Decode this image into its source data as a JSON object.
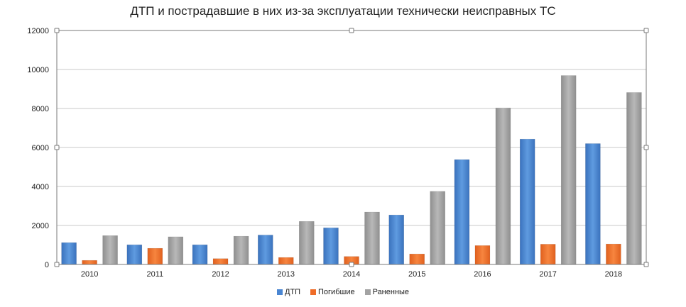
{
  "chart_data": {
    "type": "bar",
    "title": "ДТП и пострадавшие в них из-за эксплуатации технически неисправных ТС",
    "xlabel": "",
    "ylabel": "",
    "categories": [
      "2010",
      "2011",
      "2012",
      "2013",
      "2014",
      "2015",
      "2016",
      "2017",
      "2018"
    ],
    "series": [
      {
        "name": "ДТП",
        "color": "#4a86d2",
        "values": [
          1120,
          1010,
          1010,
          1510,
          1880,
          2540,
          5380,
          6430,
          6200
        ]
      },
      {
        "name": "Погибшие",
        "color": "#ef6c28",
        "values": [
          210,
          830,
          300,
          360,
          410,
          540,
          970,
          1040,
          1050
        ]
      },
      {
        "name": "Раненные",
        "color": "#a3a3a3",
        "values": [
          1480,
          1420,
          1450,
          2210,
          2690,
          3750,
          8030,
          9690,
          8820
        ]
      }
    ],
    "ylim": [
      0,
      12000
    ],
    "yticks": [
      "0",
      "2000",
      "4000",
      "6000",
      "8000",
      "10000",
      "12000"
    ],
    "grid": true,
    "legend_position": "bottom"
  }
}
